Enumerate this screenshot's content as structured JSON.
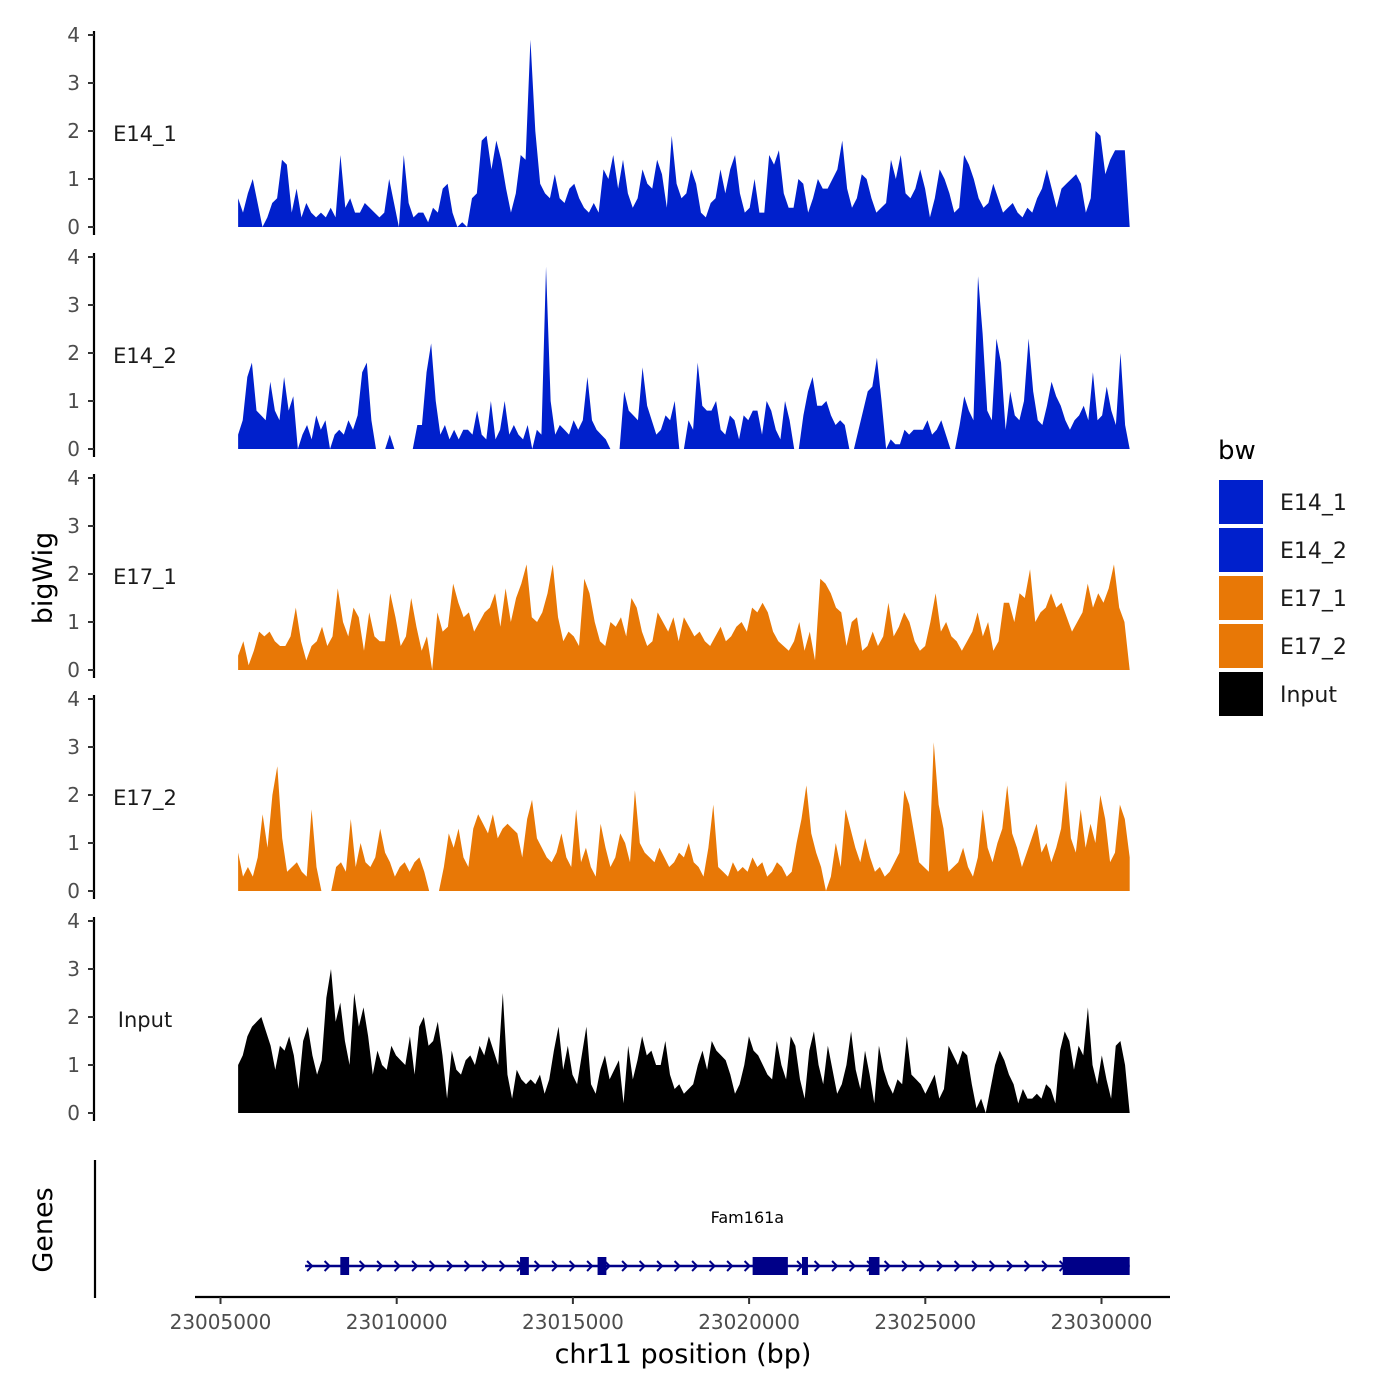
{
  "chart_data": {
    "type": "area",
    "y_axis_title": "bigWig",
    "x_axis_title": "chr11 position (bp)",
    "x_ticks": [
      23005000,
      23010000,
      23015000,
      23020000,
      23025000,
      23030000
    ],
    "x_tick_labels": [
      "23005000",
      "23010000",
      "23015000",
      "23020000",
      "23025000",
      "23030000"
    ],
    "x_range": [
      23005500,
      23030800
    ],
    "y_range": [
      0,
      4
    ],
    "y_ticks": [
      0,
      1,
      2,
      3,
      4
    ],
    "y_tick_labels": [
      "0",
      "1",
      "2",
      "3",
      "4"
    ],
    "tracks": [
      {
        "name": "E14_1",
        "color": "#0020CC",
        "values": [
          0.6,
          0.3,
          0.7,
          1.0,
          0.5,
          0.0,
          0.2,
          0.5,
          0.6,
          1.4,
          1.3,
          0.3,
          0.8,
          0.2,
          0.5,
          0.3,
          0.2,
          0.3,
          0.2,
          0.4,
          0.2,
          1.5,
          0.4,
          0.6,
          0.3,
          0.3,
          0.5,
          0.4,
          0.3,
          0.2,
          0.3,
          1.0,
          0.5,
          0.0,
          1.5,
          0.5,
          0.2,
          0.3,
          0.3,
          0.1,
          0.4,
          0.3,
          0.8,
          0.9,
          0.3,
          0.0,
          0.1,
          0.0,
          0.6,
          0.7,
          1.8,
          1.9,
          1.2,
          1.8,
          1.4,
          0.8,
          0.3,
          0.7,
          1.5,
          1.4,
          3.9,
          2.0,
          0.9,
          0.7,
          0.6,
          1.1,
          0.6,
          0.5,
          0.8,
          0.9,
          0.6,
          0.4,
          0.3,
          0.5,
          0.3,
          1.2,
          1.0,
          1.5,
          0.8,
          1.4,
          0.7,
          0.4,
          0.6,
          1.2,
          0.9,
          0.8,
          1.4,
          1.1,
          0.4,
          1.9,
          0.9,
          0.6,
          0.7,
          1.2,
          0.9,
          0.3,
          0.2,
          0.5,
          0.6,
          1.2,
          0.7,
          1.2,
          1.5,
          0.7,
          0.3,
          0.4,
          1.0,
          0.3,
          0.3,
          1.5,
          1.3,
          1.6,
          0.7,
          0.4,
          0.4,
          1.0,
          0.9,
          0.3,
          0.6,
          1.0,
          0.8,
          0.8,
          1.0,
          1.2,
          1.8,
          0.8,
          0.4,
          0.6,
          1.1,
          1.0,
          0.6,
          0.3,
          0.4,
          0.5,
          1.4,
          1.0,
          1.5,
          0.7,
          0.6,
          0.8,
          1.2,
          0.8,
          0.2,
          0.6,
          1.2,
          1.0,
          0.7,
          0.3,
          0.4,
          1.5,
          1.3,
          1.0,
          0.6,
          0.4,
          0.5,
          0.9,
          0.6,
          0.3,
          0.4,
          0.5,
          0.3,
          0.2,
          0.4,
          0.3,
          0.6,
          0.8,
          1.2,
          0.8,
          0.4,
          0.8,
          0.9,
          1.0,
          1.1,
          0.9,
          0.3,
          0.6,
          2.0,
          1.9,
          1.1,
          1.4,
          1.6,
          1.6,
          1.6,
          0.0
        ]
      },
      {
        "name": "E14_2",
        "color": "#0020CC",
        "values": [
          0.3,
          0.6,
          1.5,
          1.8,
          0.8,
          0.7,
          0.6,
          1.4,
          0.8,
          0.6,
          1.5,
          0.8,
          1.1,
          0.0,
          0.3,
          0.5,
          0.2,
          0.7,
          0.4,
          0.6,
          0.0,
          0.3,
          0.4,
          0.3,
          0.6,
          0.4,
          0.7,
          1.6,
          1.8,
          0.6,
          0.0,
          0.0,
          0.0,
          0.3,
          0.0,
          0.0,
          0.0,
          0.0,
          0.0,
          0.5,
          0.5,
          1.6,
          2.2,
          1.0,
          0.3,
          0.5,
          0.2,
          0.4,
          0.2,
          0.4,
          0.4,
          0.3,
          0.8,
          0.3,
          0.2,
          1.0,
          0.2,
          0.4,
          1.0,
          0.3,
          0.5,
          0.3,
          0.2,
          0.5,
          0.0,
          0.4,
          0.3,
          3.8,
          1.0,
          0.3,
          0.5,
          0.4,
          0.3,
          0.6,
          0.4,
          0.6,
          1.5,
          0.6,
          0.4,
          0.3,
          0.2,
          0.0,
          0.0,
          0.0,
          1.2,
          0.8,
          0.7,
          0.6,
          1.7,
          0.9,
          0.6,
          0.3,
          0.4,
          0.7,
          0.6,
          1.0,
          0.0,
          0.0,
          0.6,
          0.4,
          1.8,
          0.9,
          0.8,
          0.8,
          1.0,
          0.4,
          0.3,
          0.7,
          0.6,
          0.2,
          0.7,
          0.6,
          0.8,
          0.8,
          0.3,
          1.0,
          0.8,
          0.4,
          0.2,
          1.0,
          0.6,
          0.0,
          0.0,
          0.7,
          1.2,
          1.5,
          0.9,
          0.9,
          1.0,
          0.7,
          0.5,
          0.6,
          0.5,
          0.0,
          0.0,
          0.4,
          0.8,
          1.2,
          1.3,
          1.9,
          1.0,
          0.0,
          0.2,
          0.1,
          0.1,
          0.4,
          0.3,
          0.4,
          0.4,
          0.4,
          0.6,
          0.3,
          0.4,
          0.6,
          0.3,
          0.0,
          0.0,
          0.5,
          1.1,
          0.8,
          0.6,
          3.6,
          2.4,
          0.8,
          0.6,
          2.3,
          1.8,
          0.4,
          1.2,
          0.7,
          0.6,
          1.0,
          2.3,
          1.2,
          0.6,
          0.5,
          0.9,
          1.4,
          1.1,
          0.9,
          0.6,
          0.4,
          0.6,
          0.7,
          0.9,
          0.6,
          1.6,
          0.6,
          0.7,
          1.3,
          0.8,
          0.5,
          2.0,
          0.5,
          0.0
        ]
      },
      {
        "name": "E17_1",
        "color": "#E87806",
        "values": [
          0.3,
          0.6,
          0.1,
          0.4,
          0.8,
          0.7,
          0.8,
          0.6,
          0.5,
          0.5,
          0.7,
          1.3,
          0.6,
          0.2,
          0.5,
          0.6,
          0.9,
          0.5,
          0.7,
          1.7,
          1.0,
          0.7,
          1.3,
          1.1,
          0.4,
          1.2,
          0.7,
          0.6,
          0.6,
          1.6,
          1.1,
          0.5,
          0.7,
          1.5,
          0.9,
          0.4,
          0.7,
          0.0,
          1.2,
          0.8,
          0.9,
          1.8,
          1.4,
          1.1,
          1.2,
          0.8,
          1.0,
          1.2,
          1.3,
          1.6,
          0.9,
          1.7,
          1.0,
          1.5,
          1.8,
          2.2,
          1.1,
          1.0,
          1.2,
          1.6,
          2.2,
          1.1,
          0.6,
          0.8,
          0.7,
          0.5,
          1.9,
          1.6,
          1.0,
          0.6,
          0.5,
          1.0,
          0.9,
          1.1,
          0.7,
          1.5,
          1.3,
          0.8,
          0.5,
          0.6,
          1.2,
          1.0,
          0.8,
          1.1,
          0.6,
          1.1,
          0.9,
          0.7,
          0.8,
          0.6,
          0.5,
          0.7,
          0.9,
          0.6,
          0.7,
          0.9,
          1.0,
          0.8,
          1.3,
          1.2,
          1.4,
          1.2,
          0.8,
          0.6,
          0.5,
          0.4,
          0.6,
          1.0,
          0.4,
          0.8,
          0.2,
          1.9,
          1.8,
          1.6,
          1.3,
          1.2,
          0.5,
          1.0,
          1.1,
          0.4,
          0.5,
          0.8,
          0.5,
          0.7,
          1.4,
          0.7,
          0.9,
          1.2,
          1.0,
          0.6,
          0.4,
          0.5,
          1.0,
          1.6,
          0.8,
          1.0,
          0.7,
          0.6,
          0.4,
          0.6,
          0.8,
          1.2,
          0.7,
          1.0,
          0.4,
          0.6,
          1.4,
          1.4,
          1.0,
          1.6,
          1.5,
          2.1,
          1.0,
          1.2,
          1.3,
          1.6,
          1.3,
          1.4,
          1.1,
          0.8,
          1.0,
          1.2,
          1.8,
          1.3,
          1.6,
          1.4,
          1.7,
          2.2,
          1.3,
          1.0,
          0.0
        ]
      },
      {
        "name": "E17_2",
        "color": "#E87806",
        "values": [
          0.8,
          0.3,
          0.5,
          0.3,
          0.7,
          1.6,
          0.9,
          2.0,
          2.6,
          1.1,
          0.4,
          0.5,
          0.6,
          0.4,
          0.3,
          1.7,
          0.5,
          0.0,
          0.0,
          0.0,
          0.5,
          0.6,
          0.4,
          1.5,
          0.5,
          1.0,
          0.6,
          0.5,
          0.7,
          1.3,
          0.8,
          0.6,
          0.3,
          0.5,
          0.6,
          0.4,
          0.6,
          0.7,
          0.4,
          0.0,
          0.0,
          0.0,
          0.5,
          1.2,
          0.9,
          1.3,
          0.7,
          0.5,
          1.3,
          1.6,
          1.4,
          1.2,
          1.6,
          1.1,
          1.3,
          1.4,
          1.3,
          1.2,
          0.7,
          1.5,
          1.9,
          1.1,
          0.9,
          0.7,
          0.6,
          0.8,
          1.2,
          0.7,
          0.5,
          1.7,
          0.6,
          0.9,
          0.5,
          0.3,
          1.4,
          0.9,
          0.5,
          0.7,
          1.2,
          1.0,
          0.6,
          2.1,
          1.0,
          0.8,
          0.7,
          0.6,
          0.9,
          0.7,
          0.5,
          0.6,
          0.8,
          0.7,
          1.0,
          0.6,
          0.5,
          0.3,
          0.9,
          1.8,
          0.5,
          0.4,
          0.3,
          0.6,
          0.4,
          0.5,
          0.4,
          0.7,
          0.5,
          0.6,
          0.3,
          0.4,
          0.6,
          0.5,
          0.3,
          0.4,
          1.0,
          1.5,
          2.2,
          1.2,
          0.8,
          0.5,
          0.0,
          0.3,
          1.0,
          0.5,
          1.7,
          1.3,
          0.9,
          0.6,
          1.1,
          0.7,
          0.4,
          0.5,
          0.3,
          0.4,
          0.6,
          0.8,
          2.1,
          1.8,
          1.2,
          0.6,
          0.5,
          0.4,
          3.1,
          1.8,
          1.3,
          0.4,
          0.5,
          0.6,
          0.9,
          0.5,
          0.3,
          0.7,
          1.7,
          0.9,
          0.6,
          1.0,
          1.3,
          2.2,
          1.2,
          0.9,
          0.5,
          0.8,
          1.1,
          1.4,
          0.8,
          1.0,
          0.6,
          0.9,
          1.3,
          2.3,
          1.1,
          0.8,
          1.7,
          0.9,
          1.4,
          1.0,
          2.0,
          1.5,
          0.6,
          0.8,
          1.8,
          1.5,
          0.7
        ]
      },
      {
        "name": "Input",
        "color": "#000000",
        "values": [
          1.0,
          1.2,
          1.6,
          1.8,
          1.9,
          2.0,
          1.7,
          1.4,
          0.9,
          1.4,
          1.3,
          1.6,
          1.2,
          0.5,
          1.5,
          1.8,
          1.2,
          0.8,
          1.1,
          2.4,
          3.0,
          1.9,
          2.3,
          1.5,
          1.0,
          2.5,
          1.8,
          2.2,
          1.6,
          0.8,
          1.3,
          1.0,
          0.9,
          1.4,
          1.2,
          1.1,
          1.0,
          1.6,
          0.8,
          1.8,
          2.0,
          1.4,
          1.5,
          1.9,
          1.2,
          0.3,
          1.3,
          0.9,
          0.8,
          1.1,
          1.2,
          1.0,
          1.4,
          1.2,
          1.6,
          1.3,
          1.0,
          2.5,
          0.8,
          0.3,
          0.9,
          0.7,
          0.6,
          0.7,
          0.6,
          0.8,
          0.4,
          0.7,
          1.3,
          1.8,
          0.9,
          1.4,
          0.8,
          0.6,
          1.2,
          1.8,
          0.6,
          0.4,
          0.9,
          1.2,
          0.7,
          0.9,
          1.1,
          0.2,
          1.4,
          0.7,
          1.1,
          1.6,
          1.2,
          1.3,
          1.0,
          1.0,
          1.5,
          0.8,
          0.5,
          0.6,
          0.4,
          0.5,
          0.6,
          1.0,
          1.3,
          0.9,
          1.5,
          1.3,
          1.2,
          1.1,
          0.8,
          0.4,
          0.6,
          1.0,
          1.6,
          1.3,
          1.2,
          1.0,
          0.8,
          0.7,
          1.5,
          1.0,
          0.7,
          1.6,
          1.4,
          0.7,
          0.3,
          1.3,
          1.7,
          1.0,
          0.6,
          1.4,
          0.9,
          0.4,
          0.6,
          1.0,
          1.7,
          0.9,
          0.5,
          1.3,
          0.8,
          0.2,
          1.4,
          0.9,
          0.6,
          0.4,
          0.7,
          0.6,
          1.6,
          0.8,
          0.7,
          0.6,
          0.4,
          0.6,
          0.8,
          0.3,
          0.5,
          1.4,
          1.2,
          1.0,
          1.3,
          1.2,
          0.6,
          0.1,
          0.3,
          0.0,
          0.5,
          1.0,
          1.3,
          1.1,
          0.8,
          0.6,
          0.2,
          0.5,
          0.3,
          0.3,
          0.4,
          0.3,
          0.6,
          0.5,
          0.2,
          1.3,
          1.7,
          1.5,
          0.9,
          1.4,
          1.2,
          2.2,
          1.0,
          0.6,
          1.2,
          0.7,
          0.3,
          1.4,
          1.5,
          1.0,
          0.0
        ]
      }
    ],
    "legend": {
      "title": "bw",
      "position": "right",
      "entries": [
        {
          "label": "E14_1",
          "color": "#0020CC"
        },
        {
          "label": "E14_2",
          "color": "#0020CC"
        },
        {
          "label": "E17_1",
          "color": "#E87806"
        },
        {
          "label": "E17_2",
          "color": "#E87806"
        },
        {
          "label": "Input",
          "color": "#000000"
        }
      ]
    },
    "genes_panel": {
      "title": "Genes",
      "color": "#000088",
      "genes": [
        {
          "name": "Fam161a",
          "start": 23007400,
          "end": 23030800,
          "strand": "+",
          "exons": [
            [
              23008400,
              23008650
            ],
            [
              23013500,
              23013750
            ],
            [
              23015700,
              23015950
            ],
            [
              23020100,
              23021100
            ],
            [
              23021500,
              23021650
            ],
            [
              23023400,
              23023700
            ],
            [
              23028900,
              23030800
            ]
          ]
        }
      ]
    }
  }
}
